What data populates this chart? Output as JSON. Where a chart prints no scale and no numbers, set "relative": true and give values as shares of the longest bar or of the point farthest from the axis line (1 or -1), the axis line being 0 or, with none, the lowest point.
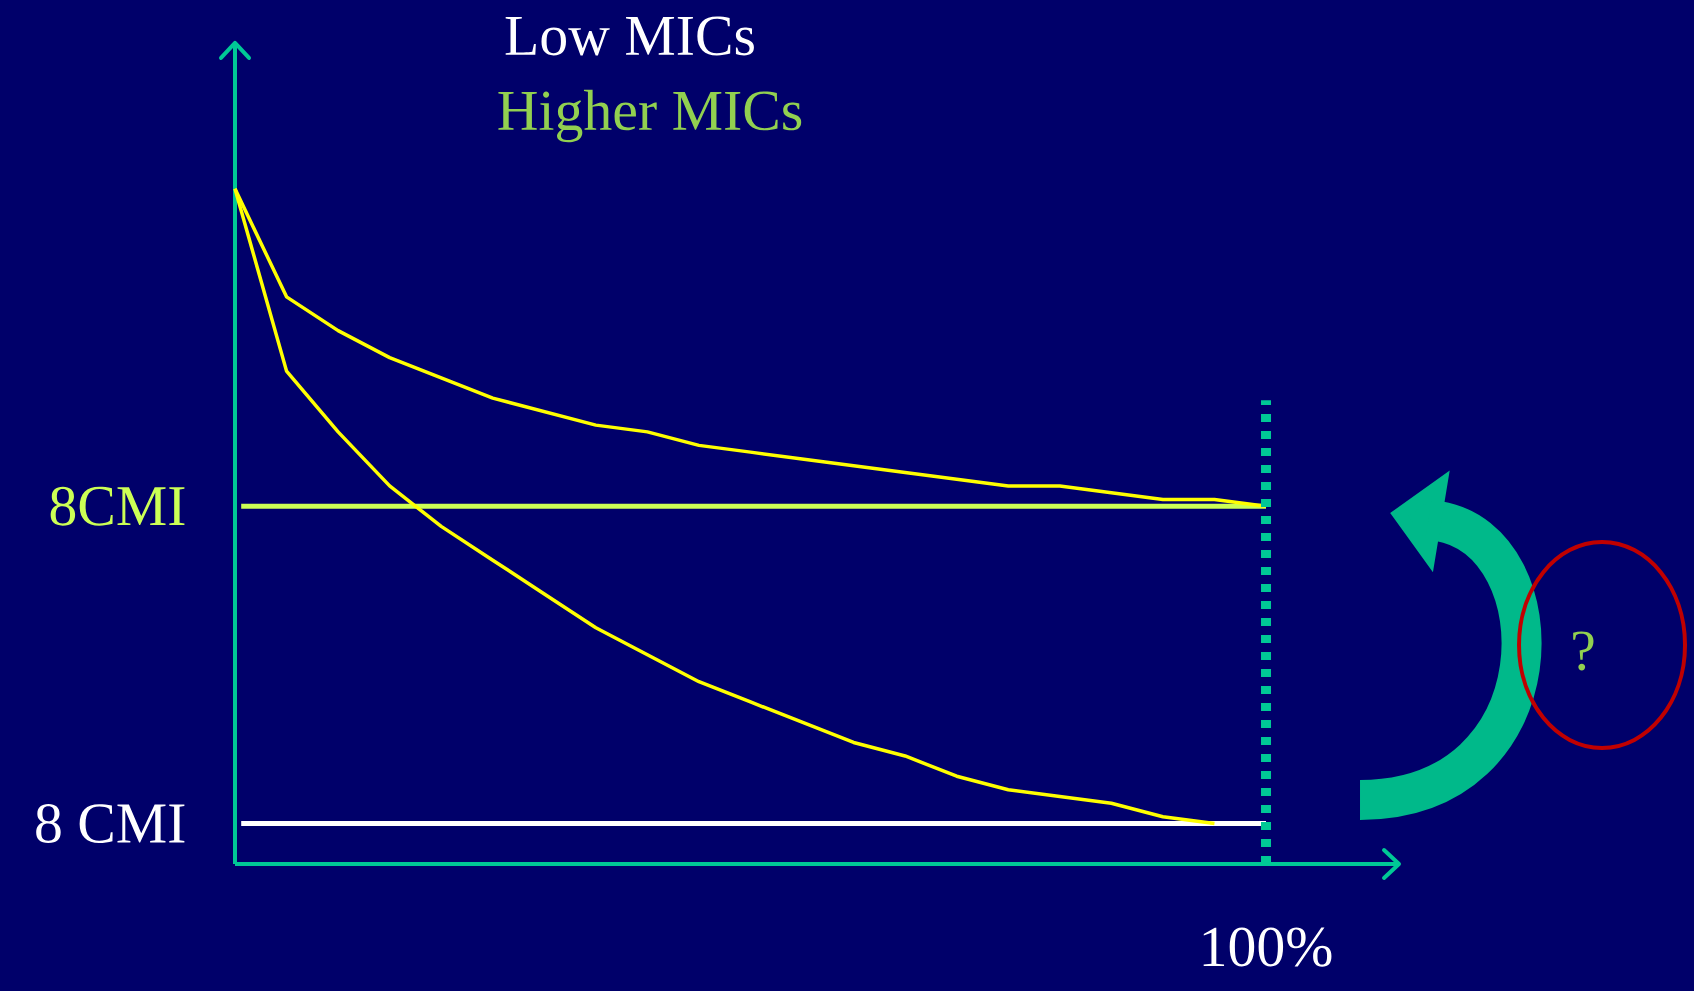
{
  "chart_data": {
    "type": "line",
    "title": "Low MICs",
    "subtitle": "Higher MICs",
    "relative": true,
    "categories": [
      null,
      null,
      null,
      null,
      null,
      null,
      null,
      null,
      null,
      null,
      null,
      null,
      null,
      null,
      null,
      null,
      null,
      null,
      null,
      null,
      null
    ],
    "series": [
      {
        "color": "#ffff00",
        "values": [
          1.0,
          0.84,
          0.79,
          0.75,
          0.72,
          0.69,
          0.67,
          0.65,
          0.64,
          0.62,
          0.61,
          0.6,
          0.59,
          0.58,
          0.57,
          0.56,
          0.56,
          0.55,
          0.54,
          0.54,
          0.53
        ]
      },
      {
        "color": "#ffff00",
        "values": [
          1.0,
          0.73,
          0.64,
          0.56,
          0.5,
          0.45,
          0.4,
          0.35,
          0.31,
          0.27,
          0.24,
          0.21,
          0.18,
          0.16,
          0.13,
          0.11,
          0.1,
          0.09,
          0.07,
          0.06,
          null
        ]
      }
    ],
    "ref_lines": [
      {
        "axis": "y",
        "value": 0.53,
        "label": "8CMI",
        "color": "#ccff55"
      },
      {
        "axis": "y",
        "value": 0.06,
        "label": "8 CMI",
        "color": "#ffffff"
      }
    ],
    "annotations": [
      "100%",
      "?"
    ]
  }
}
